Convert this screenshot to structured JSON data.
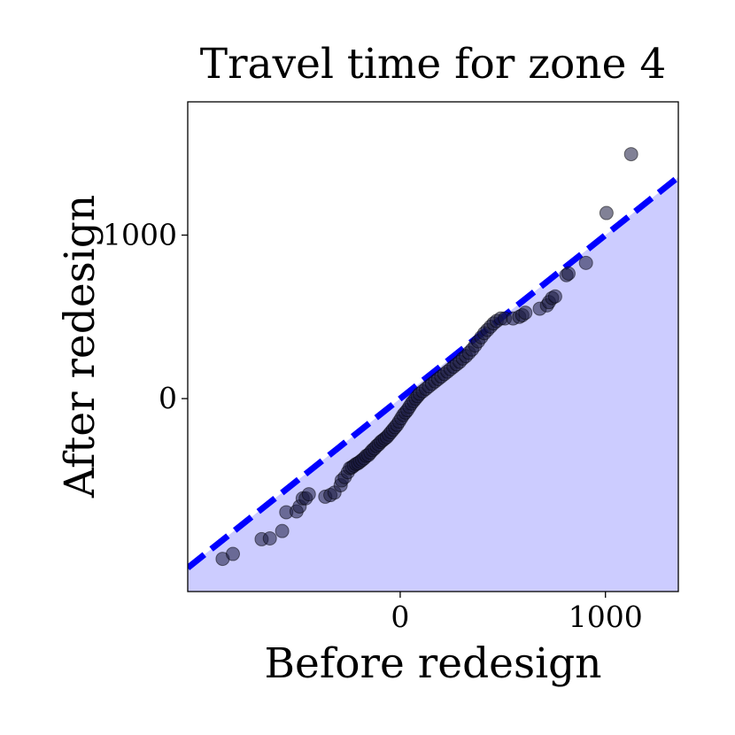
{
  "chart_data": {
    "type": "scatter",
    "title": "Travel time for zone 4",
    "xlabel": "Before redesign",
    "ylabel": "After redesign",
    "xlim": [
      -1035,
      1355
    ],
    "ylim": [
      -1180,
      1815
    ],
    "xticks": [
      0,
      1000
    ],
    "xtick_labels": [
      "0",
      "1000"
    ],
    "yticks": [
      0,
      1000
    ],
    "ytick_labels": [
      "0",
      "1000"
    ],
    "grid": false,
    "legend": "none",
    "reference_line": {
      "type": "y=x",
      "color": "#0000ff",
      "style": "dashed"
    },
    "fill_below_line": {
      "color": "#ccccff"
    },
    "points": {
      "color": "#1a1a40",
      "x": [
        -865,
        -815,
        -675,
        -635,
        -575,
        -555,
        -505,
        -490,
        -475,
        -460,
        -445,
        -365,
        -340,
        -320,
        -290,
        -285,
        -270,
        -255,
        -245,
        -235,
        -225,
        -215,
        -205,
        -195,
        -185,
        -175,
        -165,
        -155,
        -145,
        -135,
        -125,
        -115,
        -105,
        -95,
        -85,
        -75,
        -65,
        -55,
        -45,
        -35,
        -25,
        -15,
        -5,
        5,
        15,
        25,
        35,
        45,
        55,
        65,
        75,
        85,
        95,
        110,
        125,
        140,
        155,
        170,
        185,
        200,
        215,
        230,
        245,
        260,
        275,
        290,
        305,
        320,
        335,
        350,
        365,
        380,
        395,
        410,
        425,
        440,
        455,
        470,
        490,
        510,
        550,
        580,
        595,
        610,
        680,
        715,
        725,
        740,
        755,
        810,
        820,
        905,
        1005,
        1125
      ],
      "y": [
        -980,
        -950,
        -860,
        -855,
        -810,
        -695,
        -690,
        -660,
        -610,
        -610,
        -585,
        -600,
        -590,
        -575,
        -530,
        -500,
        -480,
        -450,
        -425,
        -420,
        -410,
        -400,
        -395,
        -385,
        -375,
        -365,
        -350,
        -345,
        -330,
        -315,
        -305,
        -290,
        -280,
        -265,
        -255,
        -245,
        -235,
        -220,
        -205,
        -190,
        -175,
        -160,
        -140,
        -120,
        -100,
        -85,
        -70,
        -50,
        -30,
        -15,
        0,
        15,
        30,
        45,
        60,
        75,
        90,
        105,
        120,
        135,
        150,
        165,
        180,
        195,
        210,
        225,
        245,
        260,
        280,
        300,
        325,
        350,
        375,
        400,
        420,
        440,
        460,
        475,
        490,
        490,
        490,
        500,
        510,
        525,
        550,
        570,
        590,
        615,
        625,
        755,
        765,
        830,
        1135,
        1495
      ]
    }
  }
}
